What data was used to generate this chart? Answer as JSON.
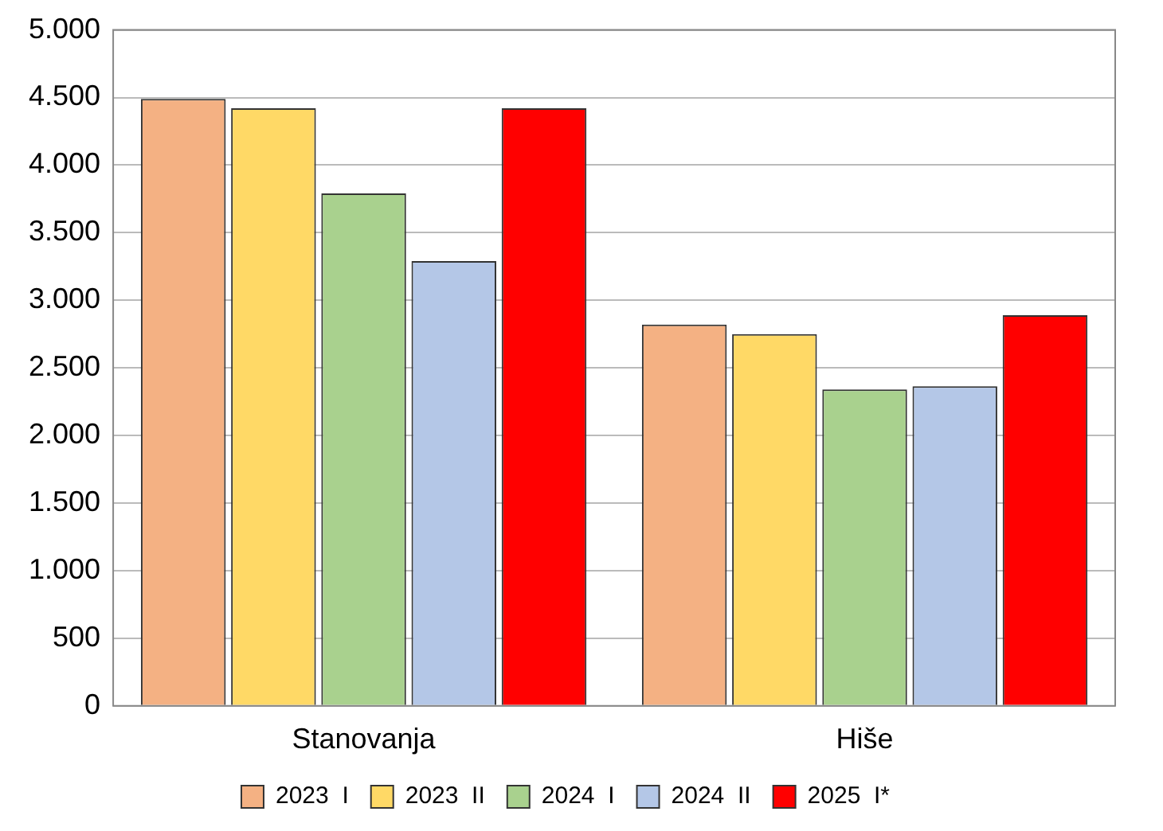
{
  "chart_data": {
    "type": "bar",
    "categories": [
      "Stanovanja",
      "Hiše"
    ],
    "series": [
      {
        "name": "2023  I",
        "color": "#f4b183",
        "values": [
          4490,
          2820
        ]
      },
      {
        "name": "2023  II",
        "color": "#ffd966",
        "values": [
          4420,
          2750
        ]
      },
      {
        "name": "2024  I",
        "color": "#a9d18e",
        "values": [
          3790,
          2340
        ]
      },
      {
        "name": "2024  II",
        "color": "#b4c7e7",
        "values": [
          3290,
          2365
        ]
      },
      {
        "name": "2025  I*",
        "color": "#ff0000",
        "values": [
          4420,
          2890
        ]
      }
    ],
    "ylim": [
      0,
      5000
    ],
    "yticks": [
      0,
      {
        "value": 500,
        "label": "500"
      },
      {
        "value": 1000,
        "label": "1.000"
      },
      {
        "value": 1500,
        "label": "1.500"
      },
      {
        "value": 2000,
        "label": "2.000"
      },
      {
        "value": 2500,
        "label": "2.500"
      },
      {
        "value": 3000,
        "label": "3.000"
      },
      {
        "value": 3500,
        "label": "3.500"
      },
      {
        "value": 4000,
        "label": "4.000"
      },
      {
        "value": 4500,
        "label": "4.500"
      },
      {
        "value": 5000,
        "label": "5.000"
      }
    ],
    "grid": "y",
    "legend": "bottom"
  }
}
